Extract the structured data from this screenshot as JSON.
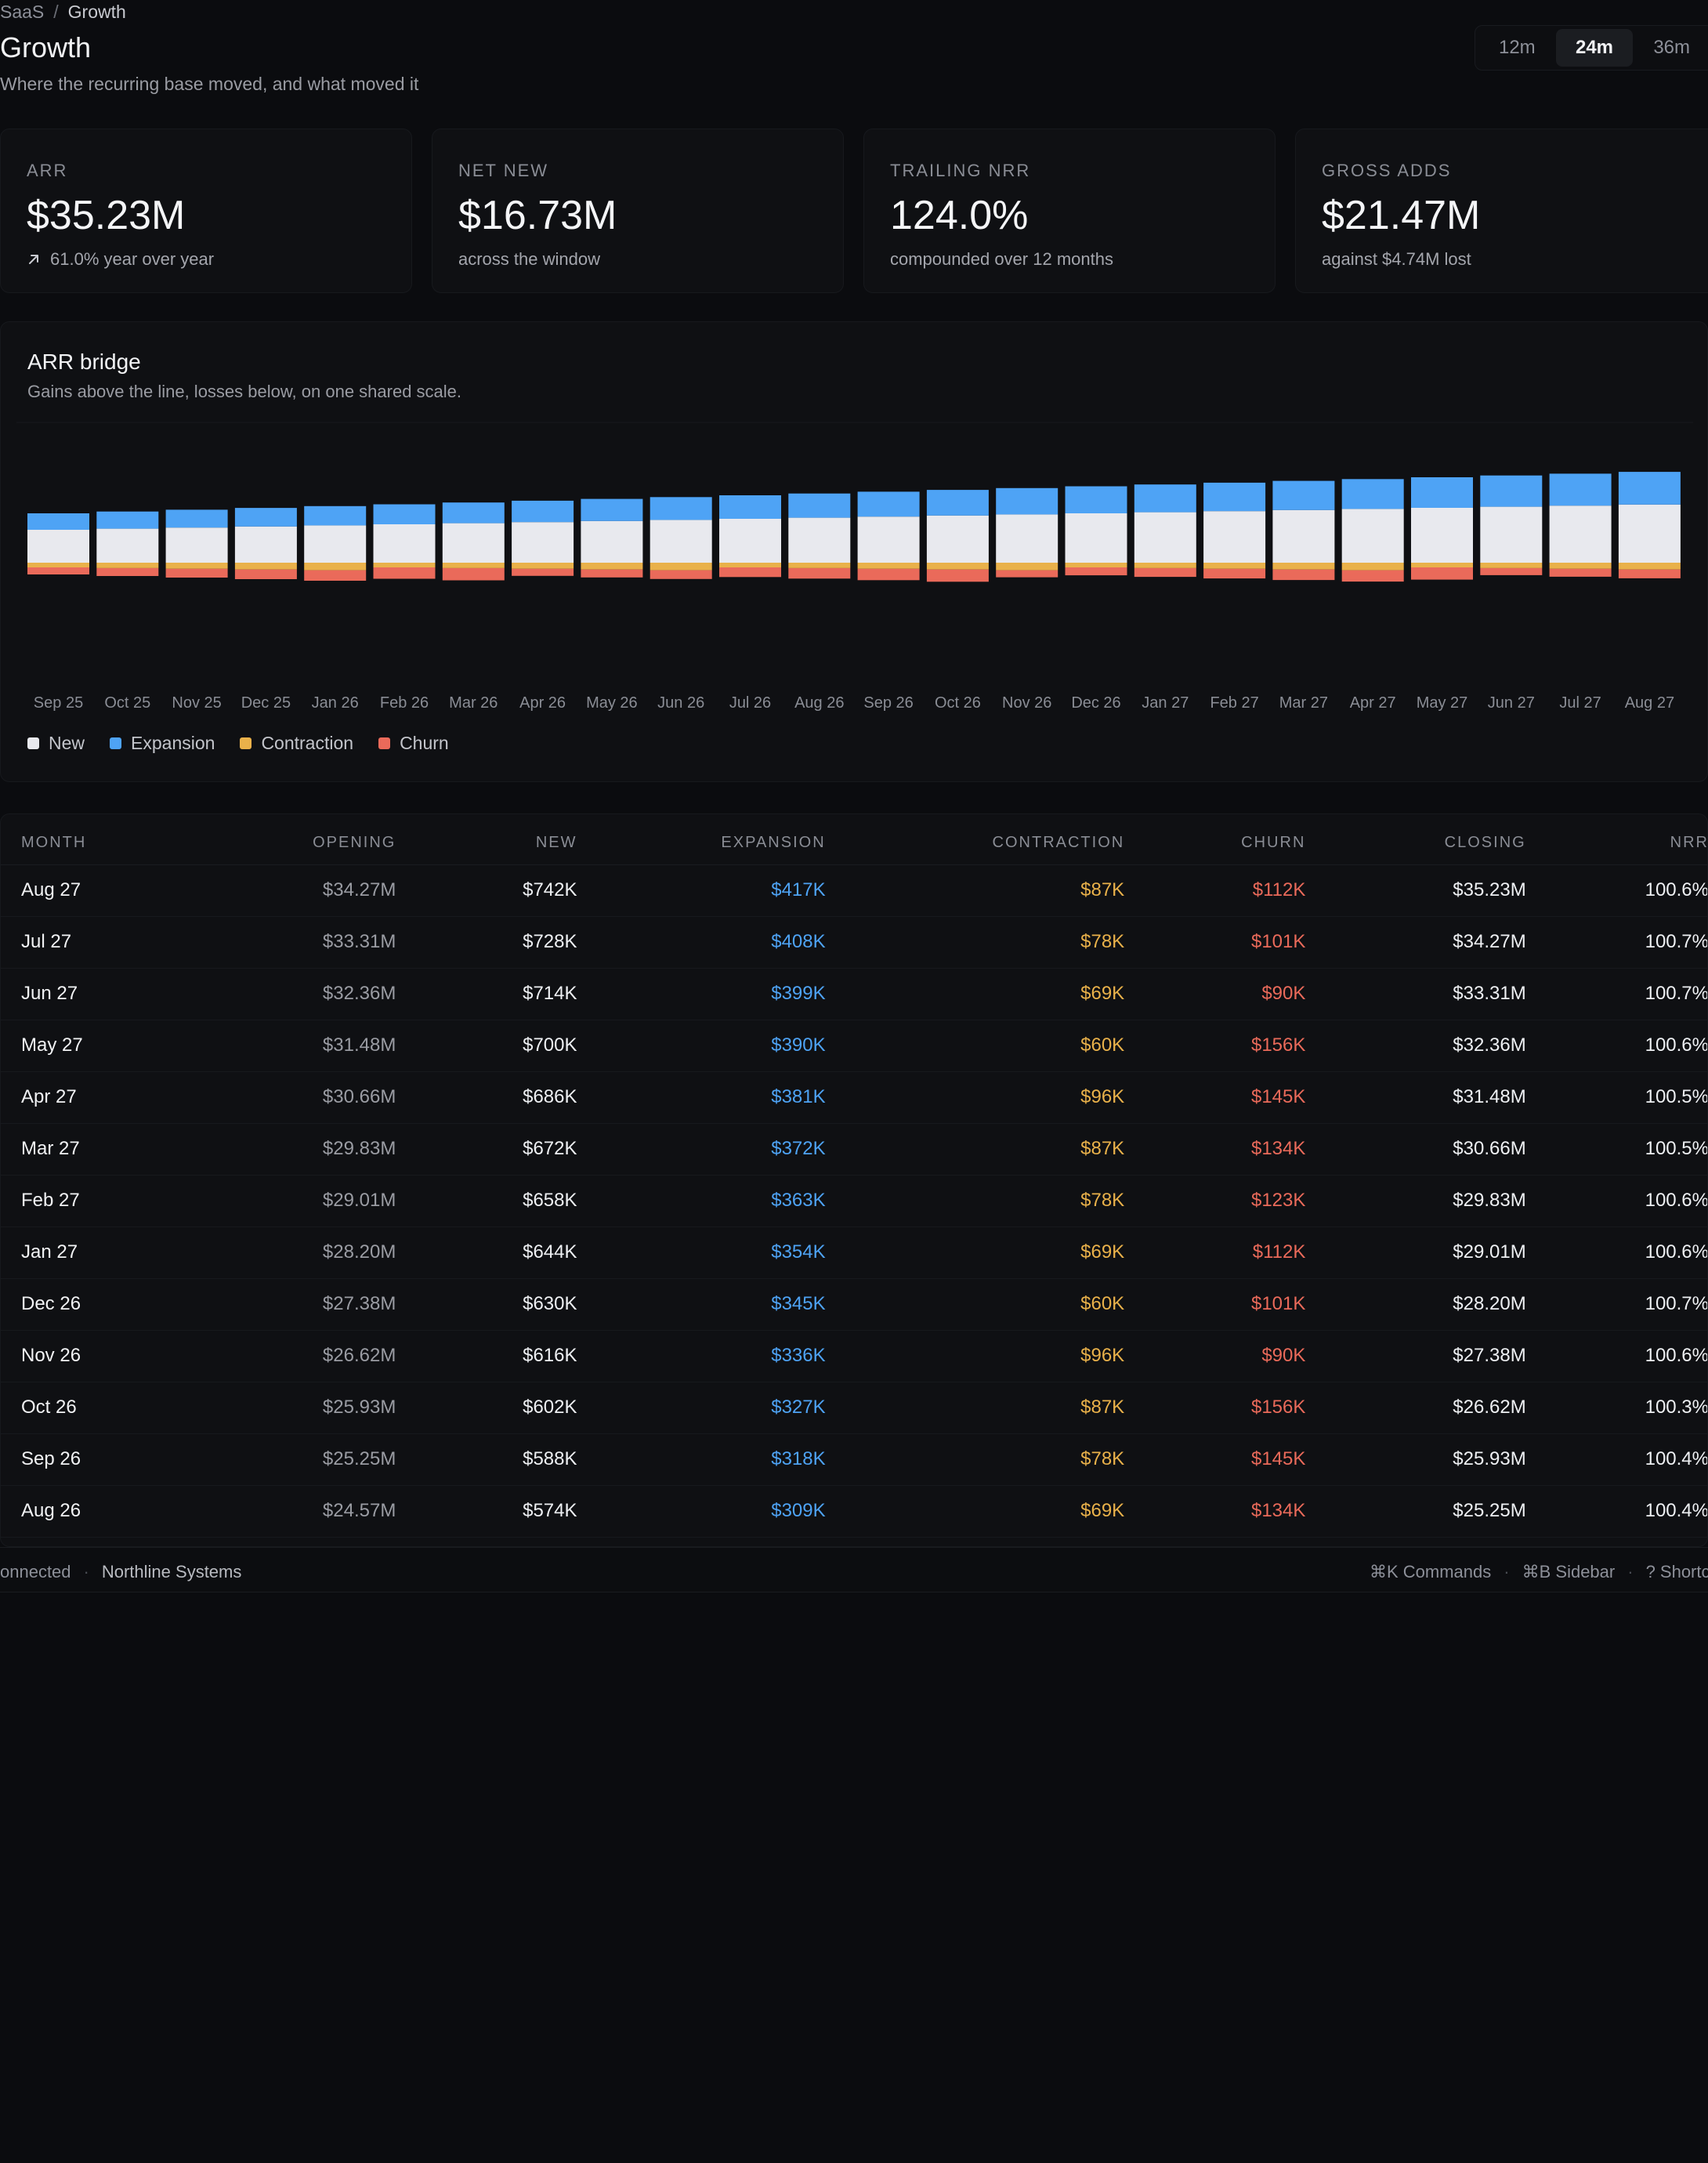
{
  "breadcrumb": {
    "parent": "SaaS",
    "separator": "/",
    "current": "Growth"
  },
  "header": {
    "title": "Growth",
    "subtitle": "Where the recurring base moved, and what moved it",
    "ranges": [
      "12m",
      "24m",
      "36m"
    ],
    "active_range": "24m"
  },
  "kpis": [
    {
      "label": "ARR",
      "value": "$35.23M",
      "note": "61.0% year over year",
      "icon": "arrow-up-right-icon"
    },
    {
      "label": "NET NEW",
      "value": "$16.73M",
      "note": "across the window"
    },
    {
      "label": "TRAILING NRR",
      "value": "124.0%",
      "note": "compounded over 12 months"
    },
    {
      "label": "GROSS ADDS",
      "value": "$21.47M",
      "note": "against $4.74M lost"
    }
  ],
  "chart": {
    "title": "ARR bridge",
    "subtitle": "Gains above the line, losses below, on one shared scale.",
    "legend": [
      {
        "name": "New",
        "color": "#e8e9ee"
      },
      {
        "name": "Expansion",
        "color": "#4ea3f5"
      },
      {
        "name": "Contraction",
        "color": "#e9b14a"
      },
      {
        "name": "Churn",
        "color": "#ea6a5a"
      }
    ]
  },
  "chart_data": {
    "type": "bar",
    "stacked": true,
    "categories": [
      "Sep 25",
      "Oct 25",
      "Nov 25",
      "Dec 25",
      "Jan 26",
      "Feb 26",
      "Mar 26",
      "Apr 26",
      "May 26",
      "Jun 26",
      "Jul 26",
      "Aug 26",
      "Sep 26",
      "Oct 26",
      "Nov 26",
      "Dec 26",
      "Jan 27",
      "Feb 27",
      "Mar 27",
      "Apr 27",
      "May 27",
      "Jun 27",
      "Jul 27",
      "Aug 27"
    ],
    "series": [
      {
        "name": "New",
        "values": [
          420,
          434,
          448,
          462,
          476,
          490,
          504,
          518,
          532,
          546,
          560,
          574,
          588,
          602,
          616,
          630,
          644,
          658,
          672,
          686,
          700,
          714,
          728,
          742
        ]
      },
      {
        "name": "Expansion",
        "values": [
          210,
          219,
          228,
          237,
          246,
          255,
          264,
          273,
          282,
          291,
          300,
          309,
          318,
          327,
          336,
          345,
          354,
          363,
          372,
          381,
          390,
          399,
          408,
          417
        ]
      },
      {
        "name": "Contraction",
        "values": [
          -60,
          -69,
          -78,
          -87,
          -96,
          -60,
          -69,
          -78,
          -87,
          -96,
          -60,
          -69,
          -78,
          -87,
          -96,
          -60,
          -69,
          -78,
          -87,
          -96,
          -60,
          -69,
          -78,
          -87
        ]
      },
      {
        "name": "Churn",
        "values": [
          -90,
          -101,
          -112,
          -123,
          -134,
          -145,
          -156,
          -90,
          -101,
          -112,
          -123,
          -134,
          -145,
          -156,
          -90,
          -101,
          -112,
          -123,
          -134,
          -145,
          -156,
          -90,
          -101,
          -112
        ]
      }
    ],
    "xlabel": "",
    "ylabel": "",
    "grid": false,
    "legend": "bottom-left"
  },
  "table": {
    "columns": [
      "MONTH",
      "OPENING",
      "NEW",
      "EXPANSION",
      "CONTRACTION",
      "CHURN",
      "CLOSING",
      "NRR"
    ],
    "rows": [
      [
        "Aug 27",
        "$34.27M",
        "$742K",
        "$417K",
        "$87K",
        "$112K",
        "$35.23M",
        "100.6%"
      ],
      [
        "Jul 27",
        "$33.31M",
        "$728K",
        "$408K",
        "$78K",
        "$101K",
        "$34.27M",
        "100.7%"
      ],
      [
        "Jun 27",
        "$32.36M",
        "$714K",
        "$399K",
        "$69K",
        "$90K",
        "$33.31M",
        "100.7%"
      ],
      [
        "May 27",
        "$31.48M",
        "$700K",
        "$390K",
        "$60K",
        "$156K",
        "$32.36M",
        "100.6%"
      ],
      [
        "Apr 27",
        "$30.66M",
        "$686K",
        "$381K",
        "$96K",
        "$145K",
        "$31.48M",
        "100.5%"
      ],
      [
        "Mar 27",
        "$29.83M",
        "$672K",
        "$372K",
        "$87K",
        "$134K",
        "$30.66M",
        "100.5%"
      ],
      [
        "Feb 27",
        "$29.01M",
        "$658K",
        "$363K",
        "$78K",
        "$123K",
        "$29.83M",
        "100.6%"
      ],
      [
        "Jan 27",
        "$28.20M",
        "$644K",
        "$354K",
        "$69K",
        "$112K",
        "$29.01M",
        "100.6%"
      ],
      [
        "Dec 26",
        "$27.38M",
        "$630K",
        "$345K",
        "$60K",
        "$101K",
        "$28.20M",
        "100.7%"
      ],
      [
        "Nov 26",
        "$26.62M",
        "$616K",
        "$336K",
        "$96K",
        "$90K",
        "$27.38M",
        "100.6%"
      ],
      [
        "Oct 26",
        "$25.93M",
        "$602K",
        "$327K",
        "$87K",
        "$156K",
        "$26.62M",
        "100.3%"
      ],
      [
        "Sep 26",
        "$25.25M",
        "$588K",
        "$318K",
        "$78K",
        "$145K",
        "$25.93M",
        "100.4%"
      ],
      [
        "Aug 26",
        "$24.57M",
        "$574K",
        "$309K",
        "$69K",
        "$134K",
        "$25.25M",
        "100.4%"
      ]
    ]
  },
  "footer": {
    "status": "onnected",
    "org": "Northline Systems",
    "shortcuts": [
      "⌘K Commands",
      "⌘B Sidebar",
      "? Shortc"
    ]
  }
}
